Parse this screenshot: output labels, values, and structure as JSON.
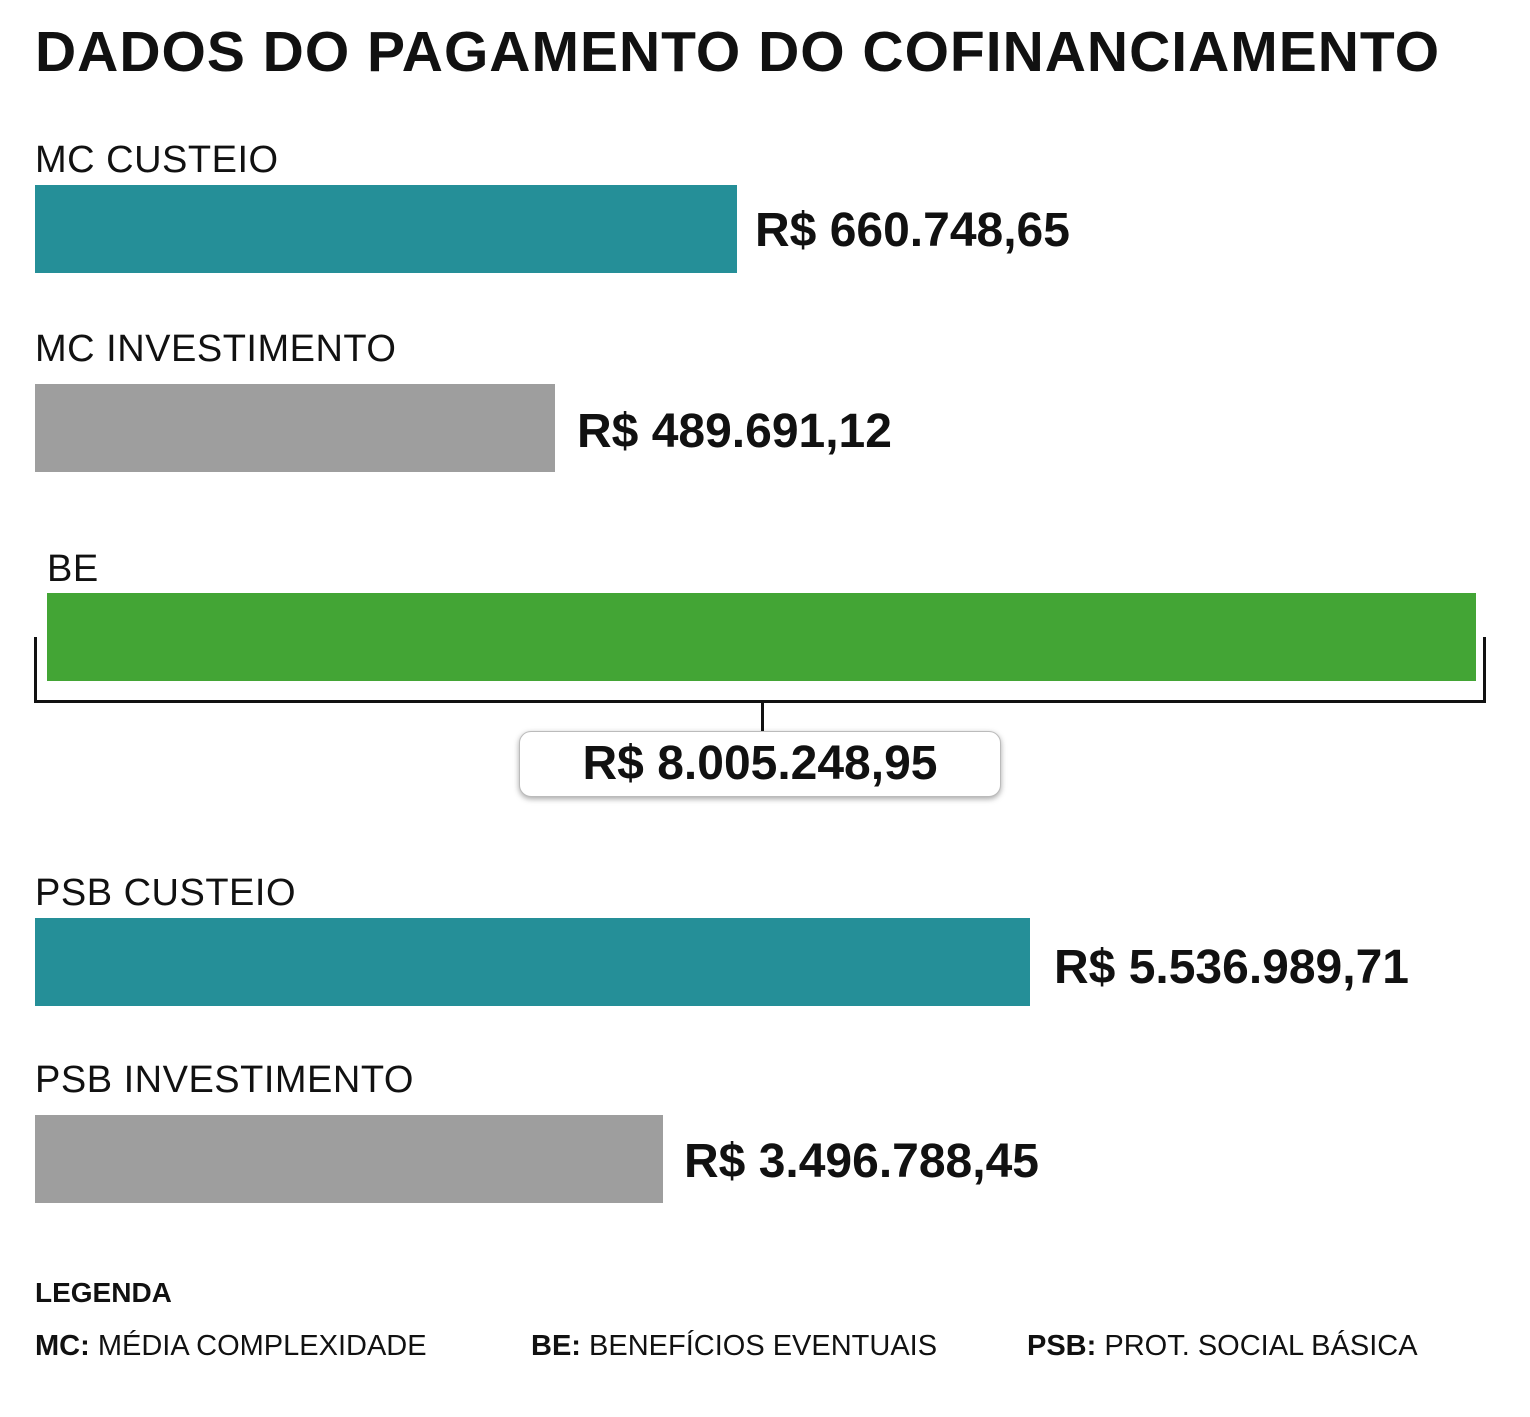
{
  "chart_data": {
    "type": "bar",
    "orientation": "horizontal",
    "title": "DADOS DO PAGAMENTO DO COFINANCIAMENTO",
    "categories": [
      "MC CUSTEIO",
      "MC INVESTIMENTO",
      "BE",
      "PSB CUSTEIO",
      "PSB INVESTIMENTO"
    ],
    "values": [
      660748.65,
      489691.12,
      8005248.95,
      5536989.71,
      3496788.45
    ],
    "value_labels": [
      "R$ 660.748,65",
      "R$ 489.691,12",
      "R$ 8.005.248,95",
      "R$ 5.536.989,71",
      "R$ 3.496.788,45"
    ],
    "colors": [
      "#258f98",
      "#9e9e9e",
      "#43a535",
      "#258f98",
      "#9e9e9e"
    ],
    "xlabel": "",
    "ylabel": "",
    "grid": false,
    "legend": {
      "title": "LEGENDA",
      "items": [
        {
          "abbr": "MC:",
          "text": "MÉDIA COMPLEXIDADE"
        },
        {
          "abbr": "BE:",
          "text": "BENEFÍCIOS EVENTUAIS"
        },
        {
          "abbr": "PSB:",
          "text": "PROT. SOCIAL BÁSICA"
        }
      ]
    }
  }
}
